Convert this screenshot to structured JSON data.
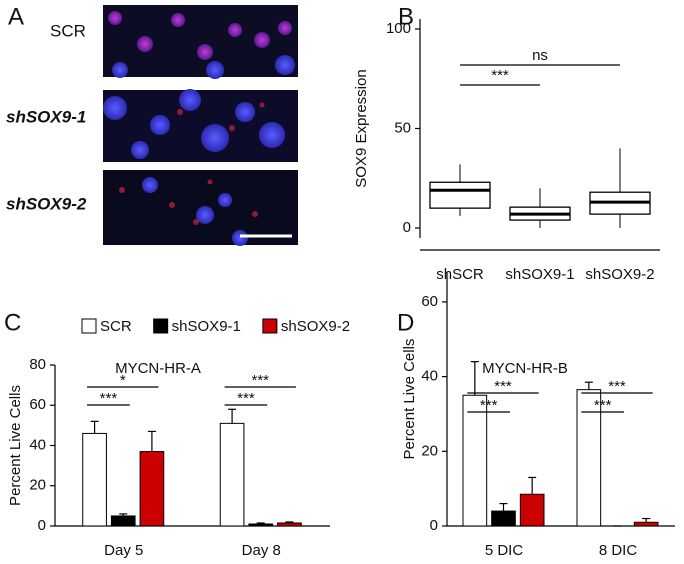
{
  "chart_data": [
    {
      "type": "image",
      "panel": "A",
      "rows": [
        "SCR",
        "shSOX9-1",
        "shSOX9-2"
      ]
    },
    {
      "type": "box",
      "panel": "B",
      "ylabel": "SOX9 Expression",
      "categories": [
        "shSCR",
        "shSOX9-1",
        "shSOX9-2"
      ],
      "boxes": [
        {
          "low": 6,
          "q1": 10,
          "median": 19,
          "q3": 23,
          "high": 32
        },
        {
          "low": 0,
          "q1": 4,
          "median": 7,
          "q3": 10.5,
          "high": 20
        },
        {
          "low": 0,
          "q1": 7,
          "median": 13,
          "q3": 18,
          "high": 40
        }
      ],
      "color": "#000000",
      "ylim": [
        -5,
        105
      ],
      "yticks": [
        0,
        50,
        100
      ],
      "annotations": [
        {
          "label": "***",
          "between": [
            "shSCR",
            "shSOX9-1"
          ]
        },
        {
          "label": "ns",
          "between": [
            "shSCR",
            "shSOX9-2"
          ]
        }
      ]
    },
    {
      "type": "bar",
      "panel": "C",
      "title": "MYCN-HR-A",
      "ylabel": "Percent Live Cells",
      "legend": "top",
      "categories": [
        "Day 5",
        "Day 8"
      ],
      "series": [
        {
          "name": "SCR",
          "color": "#ffffff",
          "values": [
            46,
            51
          ],
          "errors": [
            6,
            7
          ]
        },
        {
          "name": "shSOX9-1",
          "color": "#000000",
          "values": [
            5,
            1
          ],
          "errors": [
            1,
            0.5
          ]
        },
        {
          "name": "shSOX9-2",
          "color": "#cc0000",
          "values": [
            37,
            1.5
          ],
          "errors": [
            10,
            0.5
          ]
        }
      ],
      "ylim": [
        0,
        80
      ],
      "yticks": [
        0,
        20,
        40,
        60,
        80
      ],
      "annotations": [
        {
          "label": "***",
          "category": "Day 5",
          "between": [
            "SCR",
            "shSOX9-1"
          ]
        },
        {
          "label": "*",
          "category": "Day 5",
          "between": [
            "SCR",
            "shSOX9-2"
          ]
        },
        {
          "label": "***",
          "category": "Day 8",
          "between": [
            "SCR",
            "shSOX9-1"
          ]
        },
        {
          "label": "***",
          "category": "Day 8",
          "between": [
            "SCR",
            "shSOX9-2"
          ]
        }
      ]
    },
    {
      "type": "bar",
      "panel": "D",
      "title": "MYCN-HR-B",
      "ylabel": "Percent Live Cells",
      "categories": [
        "5 DIC",
        "8 DIC"
      ],
      "series": [
        {
          "name": "SCR",
          "color": "#ffffff",
          "values": [
            35,
            36.5
          ],
          "errors": [
            9,
            2
          ]
        },
        {
          "name": "shSOX9-1",
          "color": "#000000",
          "values": [
            4,
            0
          ],
          "errors": [
            2,
            0
          ]
        },
        {
          "name": "shSOX9-2",
          "color": "#cc0000",
          "values": [
            8.5,
            1
          ],
          "errors": [
            4.5,
            1
          ]
        }
      ],
      "ylim": [
        0,
        68
      ],
      "yticks": [
        0,
        20,
        40,
        60
      ],
      "annotations": [
        {
          "label": "***",
          "category": "5 DIC",
          "between": [
            "SCR",
            "shSOX9-1"
          ]
        },
        {
          "label": "***",
          "category": "5 DIC",
          "between": [
            "SCR",
            "shSOX9-2"
          ]
        },
        {
          "label": "***",
          "category": "8 DIC",
          "between": [
            "SCR",
            "shSOX9-1"
          ]
        },
        {
          "label": "***",
          "category": "8 DIC",
          "between": [
            "SCR",
            "shSOX9-2"
          ]
        }
      ]
    }
  ]
}
